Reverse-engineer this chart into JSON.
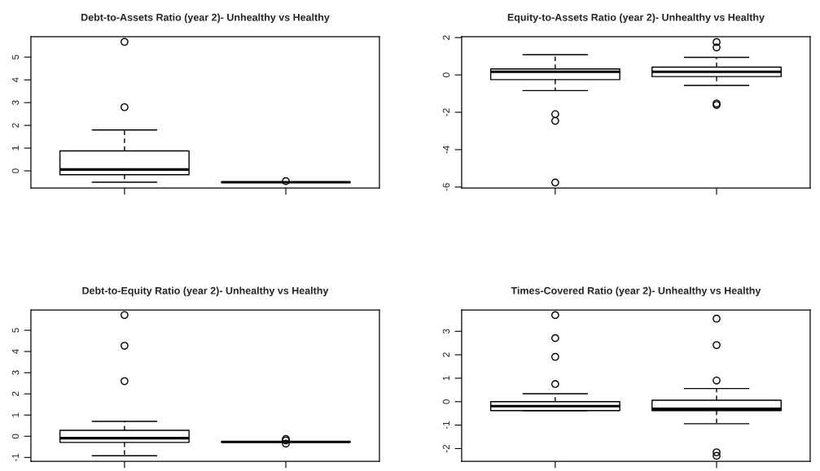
{
  "chart_data": [
    {
      "type": "box",
      "title": "Debt-to-Assets Ratio (year 2)- Unhealthy vs Healthy",
      "categories": [
        null,
        null
      ],
      "tick_labels": "y",
      "boxes": [
        {
          "low": -0.5,
          "q1": -0.17,
          "median": 0.06,
          "q3": 0.88,
          "high": 1.8,
          "outliers": [
            5.67,
            2.8
          ]
        },
        {
          "low": -0.5,
          "q1": -0.5,
          "median": -0.5,
          "q3": -0.5,
          "high": -0.5,
          "outliers": [
            -0.45
          ]
        }
      ],
      "ylim": [
        -0.75,
        5.9
      ],
      "yticks": [
        0,
        1,
        2,
        3,
        4,
        5
      ]
    },
    {
      "type": "box",
      "title": "Equity-to-Assets Ratio (year 2)- Unhealthy vs Healthy",
      "categories": [
        null,
        null
      ],
      "tick_labels": "y",
      "boxes": [
        {
          "low": -0.84,
          "q1": -0.25,
          "median": 0.17,
          "q3": 0.32,
          "high": 1.08,
          "outliers": [
            -2.1,
            -2.46,
            -5.76
          ]
        },
        {
          "low": -0.56,
          "q1": -0.09,
          "median": 0.17,
          "q3": 0.42,
          "high": 0.94,
          "outliers": [
            1.76,
            1.47,
            -1.53,
            -1.61
          ]
        }
      ],
      "ylim": [
        -6.05,
        2.05
      ],
      "yticks": [
        -6,
        -4,
        -2,
        0,
        2
      ]
    },
    {
      "type": "box",
      "title": "Debt-to-Equity Ratio (year 2)- Unhealthy vs Healthy",
      "categories": [
        null,
        null
      ],
      "tick_labels": "y",
      "boxes": [
        {
          "low": -0.92,
          "q1": -0.29,
          "median": -0.09,
          "q3": 0.28,
          "high": 0.7,
          "outliers": [
            5.72,
            4.27,
            2.6
          ]
        },
        {
          "low": -0.27,
          "q1": -0.27,
          "median": -0.27,
          "q3": -0.27,
          "high": -0.27,
          "outliers": [
            -0.13,
            -0.2,
            -0.35
          ]
        }
      ],
      "ylim": [
        -1.18,
        5.96
      ],
      "yticks": [
        -1,
        0,
        1,
        2,
        3,
        4,
        5
      ]
    },
    {
      "type": "box",
      "title": "Times-Covered Ratio (year 2)- Unhealthy vs Healthy",
      "categories": [
        null,
        null
      ],
      "tick_labels": "y",
      "boxes": [
        {
          "low": -0.38,
          "q1": -0.38,
          "median": -0.19,
          "q3": 0.0,
          "high": 0.34,
          "outliers": [
            3.69,
            2.71,
            1.91,
            0.75
          ]
        },
        {
          "low": -0.94,
          "q1": -0.38,
          "median": -0.3,
          "q3": 0.06,
          "high": 0.56,
          "outliers": [
            3.54,
            2.41,
            0.9,
            -2.16,
            -2.31
          ]
        }
      ],
      "ylim": [
        -2.54,
        3.91
      ],
      "yticks": [
        -2,
        -1,
        0,
        1,
        2,
        3
      ]
    }
  ]
}
